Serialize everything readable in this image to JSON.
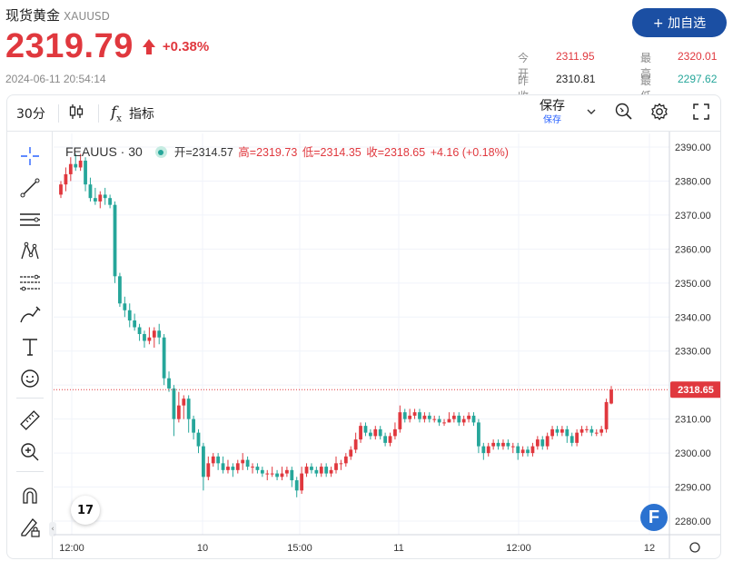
{
  "header": {
    "title": "现货黄金",
    "code": "XAUUSD",
    "price": "2319.79",
    "change_pct": "+0.38%",
    "timestamp": "2024-06-11 20:54:14",
    "add_button": "+ 加自选",
    "stats": {
      "open_label": "今开",
      "open_value": "2311.95",
      "prev_close_label": "昨收",
      "prev_close_value": "2310.81",
      "high_label": "最高",
      "high_value": "2320.01",
      "low_label": "最低",
      "low_value": "2297.62"
    },
    "colors": {
      "up": "#e0383e",
      "down": "#26a69a",
      "accent": "#1b4fa3"
    }
  },
  "toolbar": {
    "interval": "30分",
    "candle_icon": "candlestick-icon",
    "indicators_icon": "function-fx-icon",
    "indicators_label": "指标",
    "save_label": "保存",
    "save_sub": "保存",
    "icons": [
      "chevron-down-icon",
      "quick-search-icon",
      "gear-icon",
      "fullscreen-icon"
    ]
  },
  "drawing_tools": [
    "crosshair-icon",
    "trendline-icon",
    "horizontal-lines-icon",
    "pattern-icon",
    "fib-icon",
    "brush-icon",
    "text-icon",
    "emoji-icon",
    "ruler-icon",
    "zoom-in-icon",
    "magnet-icon",
    "lock-pen-icon"
  ],
  "legend": {
    "symbol": "FEAUUS · 30",
    "open": "开=2314.57",
    "high": "高=2319.73",
    "low": "低=2314.35",
    "close": "收=2318.65",
    "change": "+4.16 (+0.18%)"
  },
  "chart_data": {
    "type": "candlestick",
    "symbol": "FEAUUS",
    "interval": "30",
    "last_price": 2318.65,
    "ylim": [
      2276,
      2394
    ],
    "y_ticks": [
      "2390.00",
      "2380.00",
      "2370.00",
      "2360.00",
      "2350.00",
      "2340.00",
      "2330.00",
      "2320.00",
      "2310.00",
      "2300.00",
      "2290.00",
      "2280.00"
    ],
    "x_ticks": [
      "12:00",
      "10",
      "15:00",
      "11",
      "12:00",
      "12"
    ],
    "candles": [
      [
        2376,
        2379,
        2375,
        2380
      ],
      [
        2379,
        2382,
        2377,
        2384
      ],
      [
        2382,
        2385,
        2380,
        2387
      ],
      [
        2385,
        2384,
        2383,
        2388
      ],
      [
        2384,
        2386,
        2383,
        2388
      ],
      [
        2386,
        2379,
        2377,
        2387
      ],
      [
        2379,
        2375,
        2374,
        2381
      ],
      [
        2375,
        2374,
        2373,
        2378
      ],
      [
        2374,
        2376,
        2372,
        2377
      ],
      [
        2376,
        2375,
        2373,
        2378
      ],
      [
        2375,
        2373,
        2372,
        2376
      ],
      [
        2373,
        2352,
        2350,
        2374
      ],
      [
        2352,
        2344,
        2343,
        2353
      ],
      [
        2344,
        2342,
        2340,
        2346
      ],
      [
        2342,
        2339,
        2337,
        2344
      ],
      [
        2339,
        2337,
        2336,
        2341
      ],
      [
        2337,
        2335,
        2333,
        2338
      ],
      [
        2335,
        2333,
        2331,
        2336
      ],
      [
        2333,
        2334,
        2332,
        2337
      ],
      [
        2334,
        2336,
        2331,
        2337
      ],
      [
        2336,
        2334,
        2332,
        2338
      ],
      [
        2334,
        2322,
        2320,
        2335
      ],
      [
        2322,
        2319,
        2318,
        2324
      ],
      [
        2319,
        2310,
        2305,
        2320
      ],
      [
        2310,
        2314,
        2309,
        2318
      ],
      [
        2314,
        2316,
        2310,
        2317
      ],
      [
        2316,
        2310,
        2306,
        2317
      ],
      [
        2310,
        2306,
        2304,
        2311
      ],
      [
        2306,
        2302,
        2300,
        2307
      ],
      [
        2302,
        2293,
        2289,
        2303
      ],
      [
        2293,
        2297,
        2292,
        2299
      ],
      [
        2297,
        2299,
        2296,
        2300
      ],
      [
        2299,
        2297,
        2295,
        2300
      ],
      [
        2297,
        2295,
        2294,
        2299
      ],
      [
        2295,
        2296,
        2294,
        2298
      ],
      [
        2296,
        2295,
        2293,
        2297
      ],
      [
        2295,
        2297,
        2294,
        2298
      ],
      [
        2297,
        2298,
        2295,
        2300
      ],
      [
        2298,
        2296,
        2295,
        2299
      ],
      [
        2296,
        2296,
        2294,
        2297
      ],
      [
        2296,
        2295,
        2294,
        2297
      ],
      [
        2295,
        2294,
        2293,
        2296
      ],
      [
        2294,
        2294,
        2292,
        2295
      ],
      [
        2294,
        2294,
        2293,
        2296
      ],
      [
        2294,
        2293,
        2292,
        2295
      ],
      [
        2293,
        2294,
        2292,
        2296
      ],
      [
        2294,
        2295,
        2293,
        2296
      ],
      [
        2295,
        2292,
        2290,
        2296
      ],
      [
        2292,
        2289,
        2287,
        2293
      ],
      [
        2289,
        2294,
        2288,
        2296
      ],
      [
        2294,
        2296,
        2293,
        2297
      ],
      [
        2296,
        2295,
        2294,
        2297
      ],
      [
        2295,
        2294,
        2293,
        2296
      ],
      [
        2294,
        2296,
        2293,
        2297
      ],
      [
        2296,
        2294,
        2293,
        2297
      ],
      [
        2294,
        2295,
        2293,
        2296
      ],
      [
        2295,
        2297,
        2294,
        2299
      ],
      [
        2297,
        2297,
        2295,
        2298
      ],
      [
        2297,
        2299,
        2296,
        2300
      ],
      [
        2299,
        2301,
        2298,
        2302
      ],
      [
        2301,
        2304,
        2300,
        2306
      ],
      [
        2304,
        2308,
        2303,
        2309
      ],
      [
        2308,
        2306,
        2305,
        2309
      ],
      [
        2306,
        2305,
        2304,
        2307
      ],
      [
        2305,
        2307,
        2304,
        2308
      ],
      [
        2307,
        2305,
        2304,
        2308
      ],
      [
        2305,
        2303,
        2302,
        2306
      ],
      [
        2303,
        2305,
        2302,
        2306
      ],
      [
        2305,
        2307,
        2304,
        2309
      ],
      [
        2307,
        2312,
        2306,
        2314
      ],
      [
        2312,
        2310,
        2309,
        2313
      ],
      [
        2310,
        2311,
        2309,
        2313
      ],
      [
        2311,
        2312,
        2310,
        2313
      ],
      [
        2312,
        2310,
        2309,
        2313
      ],
      [
        2310,
        2311,
        2309,
        2312
      ],
      [
        2311,
        2310,
        2309,
        2312
      ],
      [
        2310,
        2310,
        2309,
        2311
      ],
      [
        2310,
        2309,
        2308,
        2311
      ],
      [
        2309,
        2309,
        2308,
        2310
      ],
      [
        2309,
        2310,
        2309,
        2312
      ],
      [
        2310,
        2311,
        2309,
        2312
      ],
      [
        2311,
        2309,
        2308,
        2312
      ],
      [
        2309,
        2310,
        2308,
        2311
      ],
      [
        2310,
        2311,
        2309,
        2312
      ],
      [
        2311,
        2309,
        2308,
        2312
      ],
      [
        2309,
        2302,
        2300,
        2310
      ],
      [
        2302,
        2300,
        2298,
        2303
      ],
      [
        2300,
        2302,
        2299,
        2303
      ],
      [
        2302,
        2303,
        2301,
        2304
      ],
      [
        2303,
        2302,
        2301,
        2304
      ],
      [
        2302,
        2303,
        2301,
        2304
      ],
      [
        2303,
        2302,
        2301,
        2304
      ],
      [
        2302,
        2302,
        2300,
        2303
      ],
      [
        2302,
        2300,
        2298,
        2303
      ],
      [
        2300,
        2301,
        2299,
        2302
      ],
      [
        2301,
        2300,
        2299,
        2302
      ],
      [
        2300,
        2302,
        2299,
        2303
      ],
      [
        2302,
        2304,
        2301,
        2305
      ],
      [
        2304,
        2302,
        2301,
        2305
      ],
      [
        2302,
        2305,
        2301,
        2306
      ],
      [
        2305,
        2307,
        2304,
        2308
      ],
      [
        2307,
        2306,
        2305,
        2308
      ],
      [
        2306,
        2307,
        2305,
        2308
      ],
      [
        2307,
        2305,
        2303,
        2308
      ],
      [
        2305,
        2303,
        2302,
        2306
      ],
      [
        2303,
        2306,
        2302,
        2307
      ],
      [
        2306,
        2307,
        2305,
        2308
      ],
      [
        2307,
        2307,
        2306,
        2308
      ],
      [
        2307,
        2306,
        2305,
        2308
      ],
      [
        2306,
        2306,
        2305,
        2307
      ],
      [
        2306,
        2307,
        2305,
        2308
      ],
      [
        2307,
        2315,
        2306,
        2316
      ],
      [
        2314.57,
        2318.65,
        2314.35,
        2319.73
      ]
    ]
  }
}
